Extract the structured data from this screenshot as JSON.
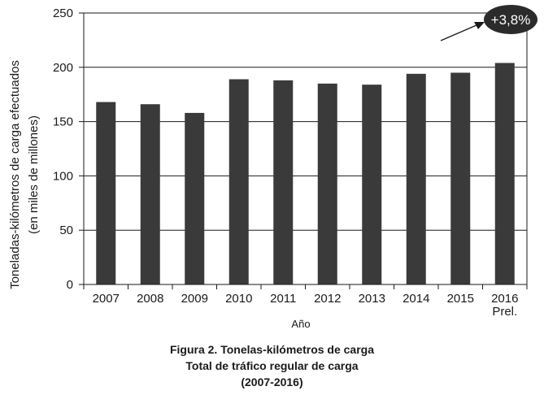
{
  "chart_data": {
    "type": "bar",
    "categories": [
      "2007",
      "2008",
      "2009",
      "2010",
      "2011",
      "2012",
      "2013",
      "2014",
      "2015",
      "2016"
    ],
    "category_sublabels": [
      "",
      "",
      "",
      "",
      "",
      "",
      "",
      "",
      "",
      "Prel."
    ],
    "values": [
      168,
      166,
      158,
      189,
      188,
      185,
      184,
      194,
      195,
      204
    ],
    "ylabel_line1": "Toneladas-kilómetros de carga efectuados",
    "ylabel_line2": "(en miles de millones)",
    "xlabel": "Año",
    "ylim": [
      0,
      250
    ],
    "yticks": [
      0,
      50,
      100,
      150,
      200,
      250
    ],
    "grid": true,
    "bar_color": "#3a3a3a",
    "annotation": {
      "text": "+3,8%",
      "color": "#2b2b2b"
    }
  },
  "caption": {
    "line1": "Figura 2.  Tonelas-kilómetros de carga",
    "line2": "Total de tráfico regular de carga",
    "line3": "(2007-2016)"
  }
}
